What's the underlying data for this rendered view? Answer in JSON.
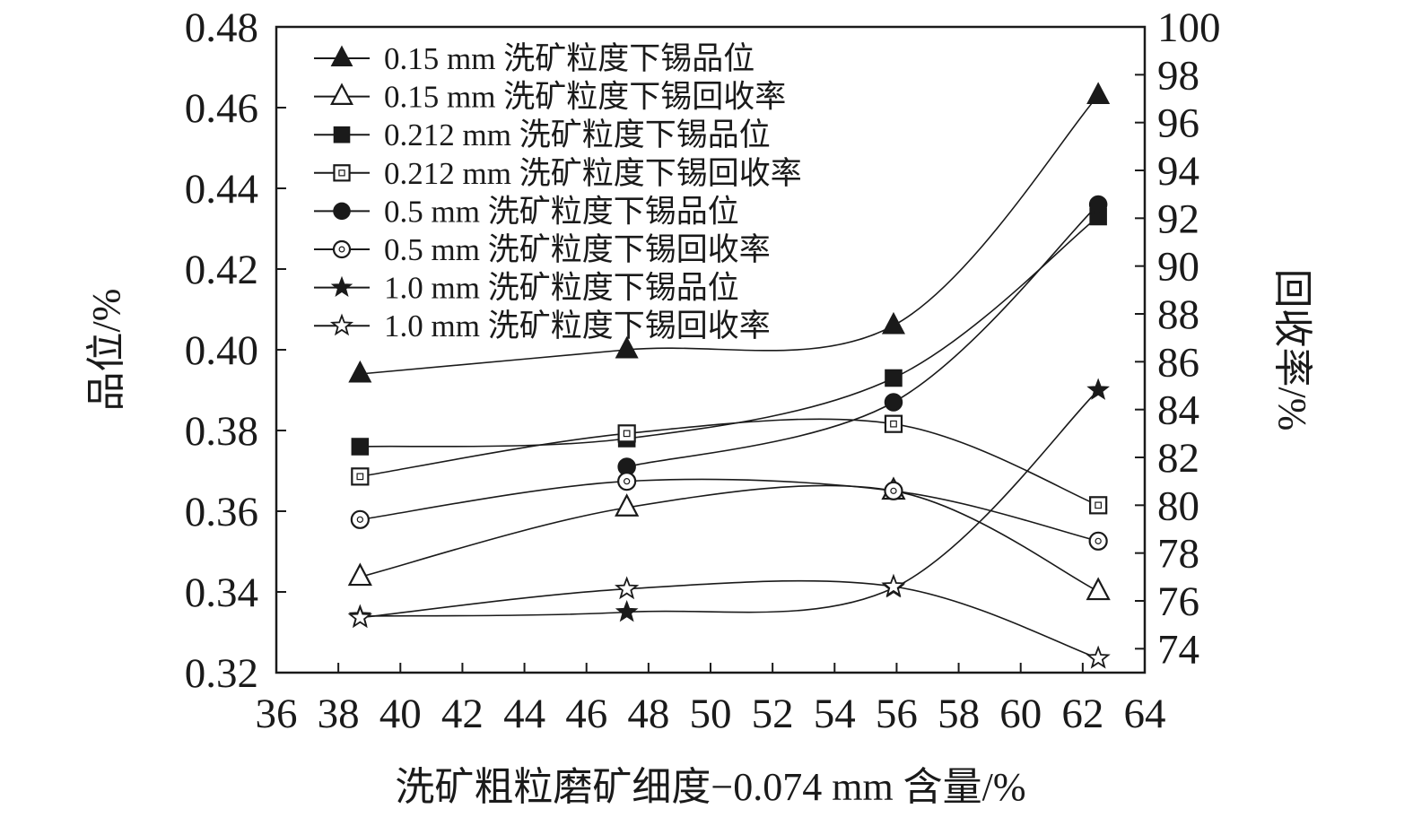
{
  "chart_data": {
    "type": "line",
    "xlabel": "洗矿粗粒磨矿细度−0.074 mm 含量/%",
    "ylabel_left": "品位/%",
    "ylabel_right": "回收率/%",
    "xlim": [
      36,
      64
    ],
    "ylim_left": [
      0.32,
      0.48
    ],
    "ylim_right": [
      73,
      100
    ],
    "x_ticks": [
      "36",
      "38",
      "40",
      "42",
      "44",
      "46",
      "48",
      "50",
      "52",
      "54",
      "56",
      "58",
      "60",
      "62",
      "64"
    ],
    "y_left_ticks": [
      "0.48",
      "0.46",
      "0.44",
      "0.42",
      "0.40",
      "0.38",
      "0.36",
      "0.34",
      "0.32"
    ],
    "y_right_ticks": [
      "100",
      "98",
      "96",
      "94",
      "92",
      "90",
      "88",
      "86",
      "84",
      "82",
      "80",
      "78",
      "76",
      "74"
    ],
    "grid": false,
    "legend_position": "top-left",
    "x": [
      38.7,
      47.3,
      55.9,
      62.5
    ],
    "series": [
      {
        "name": "0.15 mm 洗矿粒度下锡品位",
        "axis": "left",
        "marker": "triangle-filled",
        "values": [
          0.394,
          0.4,
          0.406,
          0.463
        ]
      },
      {
        "name": "0.15 mm 洗矿粒度下锡回收率",
        "axis": "right",
        "marker": "triangle-open",
        "values": [
          77.0,
          79.9,
          80.6,
          76.4
        ]
      },
      {
        "name": "0.212 mm 洗矿粒度下锡品位",
        "axis": "left",
        "marker": "square-filled",
        "values": [
          0.376,
          0.378,
          0.393,
          0.433
        ]
      },
      {
        "name": "0.212 mm 洗矿粒度下锡回收率",
        "axis": "right",
        "marker": "square-open",
        "values": [
          81.2,
          83.0,
          83.4,
          80.0
        ]
      },
      {
        "name": "0.5 mm 洗矿粒度下锡品位",
        "axis": "left",
        "marker": "circle-filled",
        "values": [
          null,
          0.371,
          0.387,
          0.436
        ]
      },
      {
        "name": "0.5 mm 洗矿粒度下锡回收率",
        "axis": "right",
        "marker": "circle-open",
        "values": [
          79.4,
          81.0,
          80.6,
          78.5
        ]
      },
      {
        "name": "1.0 mm 洗矿粒度下锡品位",
        "axis": "left",
        "marker": "star-filled",
        "values": [
          0.334,
          0.335,
          0.341,
          0.39
        ]
      },
      {
        "name": "1.0 mm 洗矿粒度下锡回收率",
        "axis": "right",
        "marker": "star-open",
        "values": [
          75.3,
          76.5,
          76.6,
          73.6
        ]
      }
    ],
    "colors": {
      "line": "#1a1a1a",
      "background": "#ffffff"
    }
  }
}
